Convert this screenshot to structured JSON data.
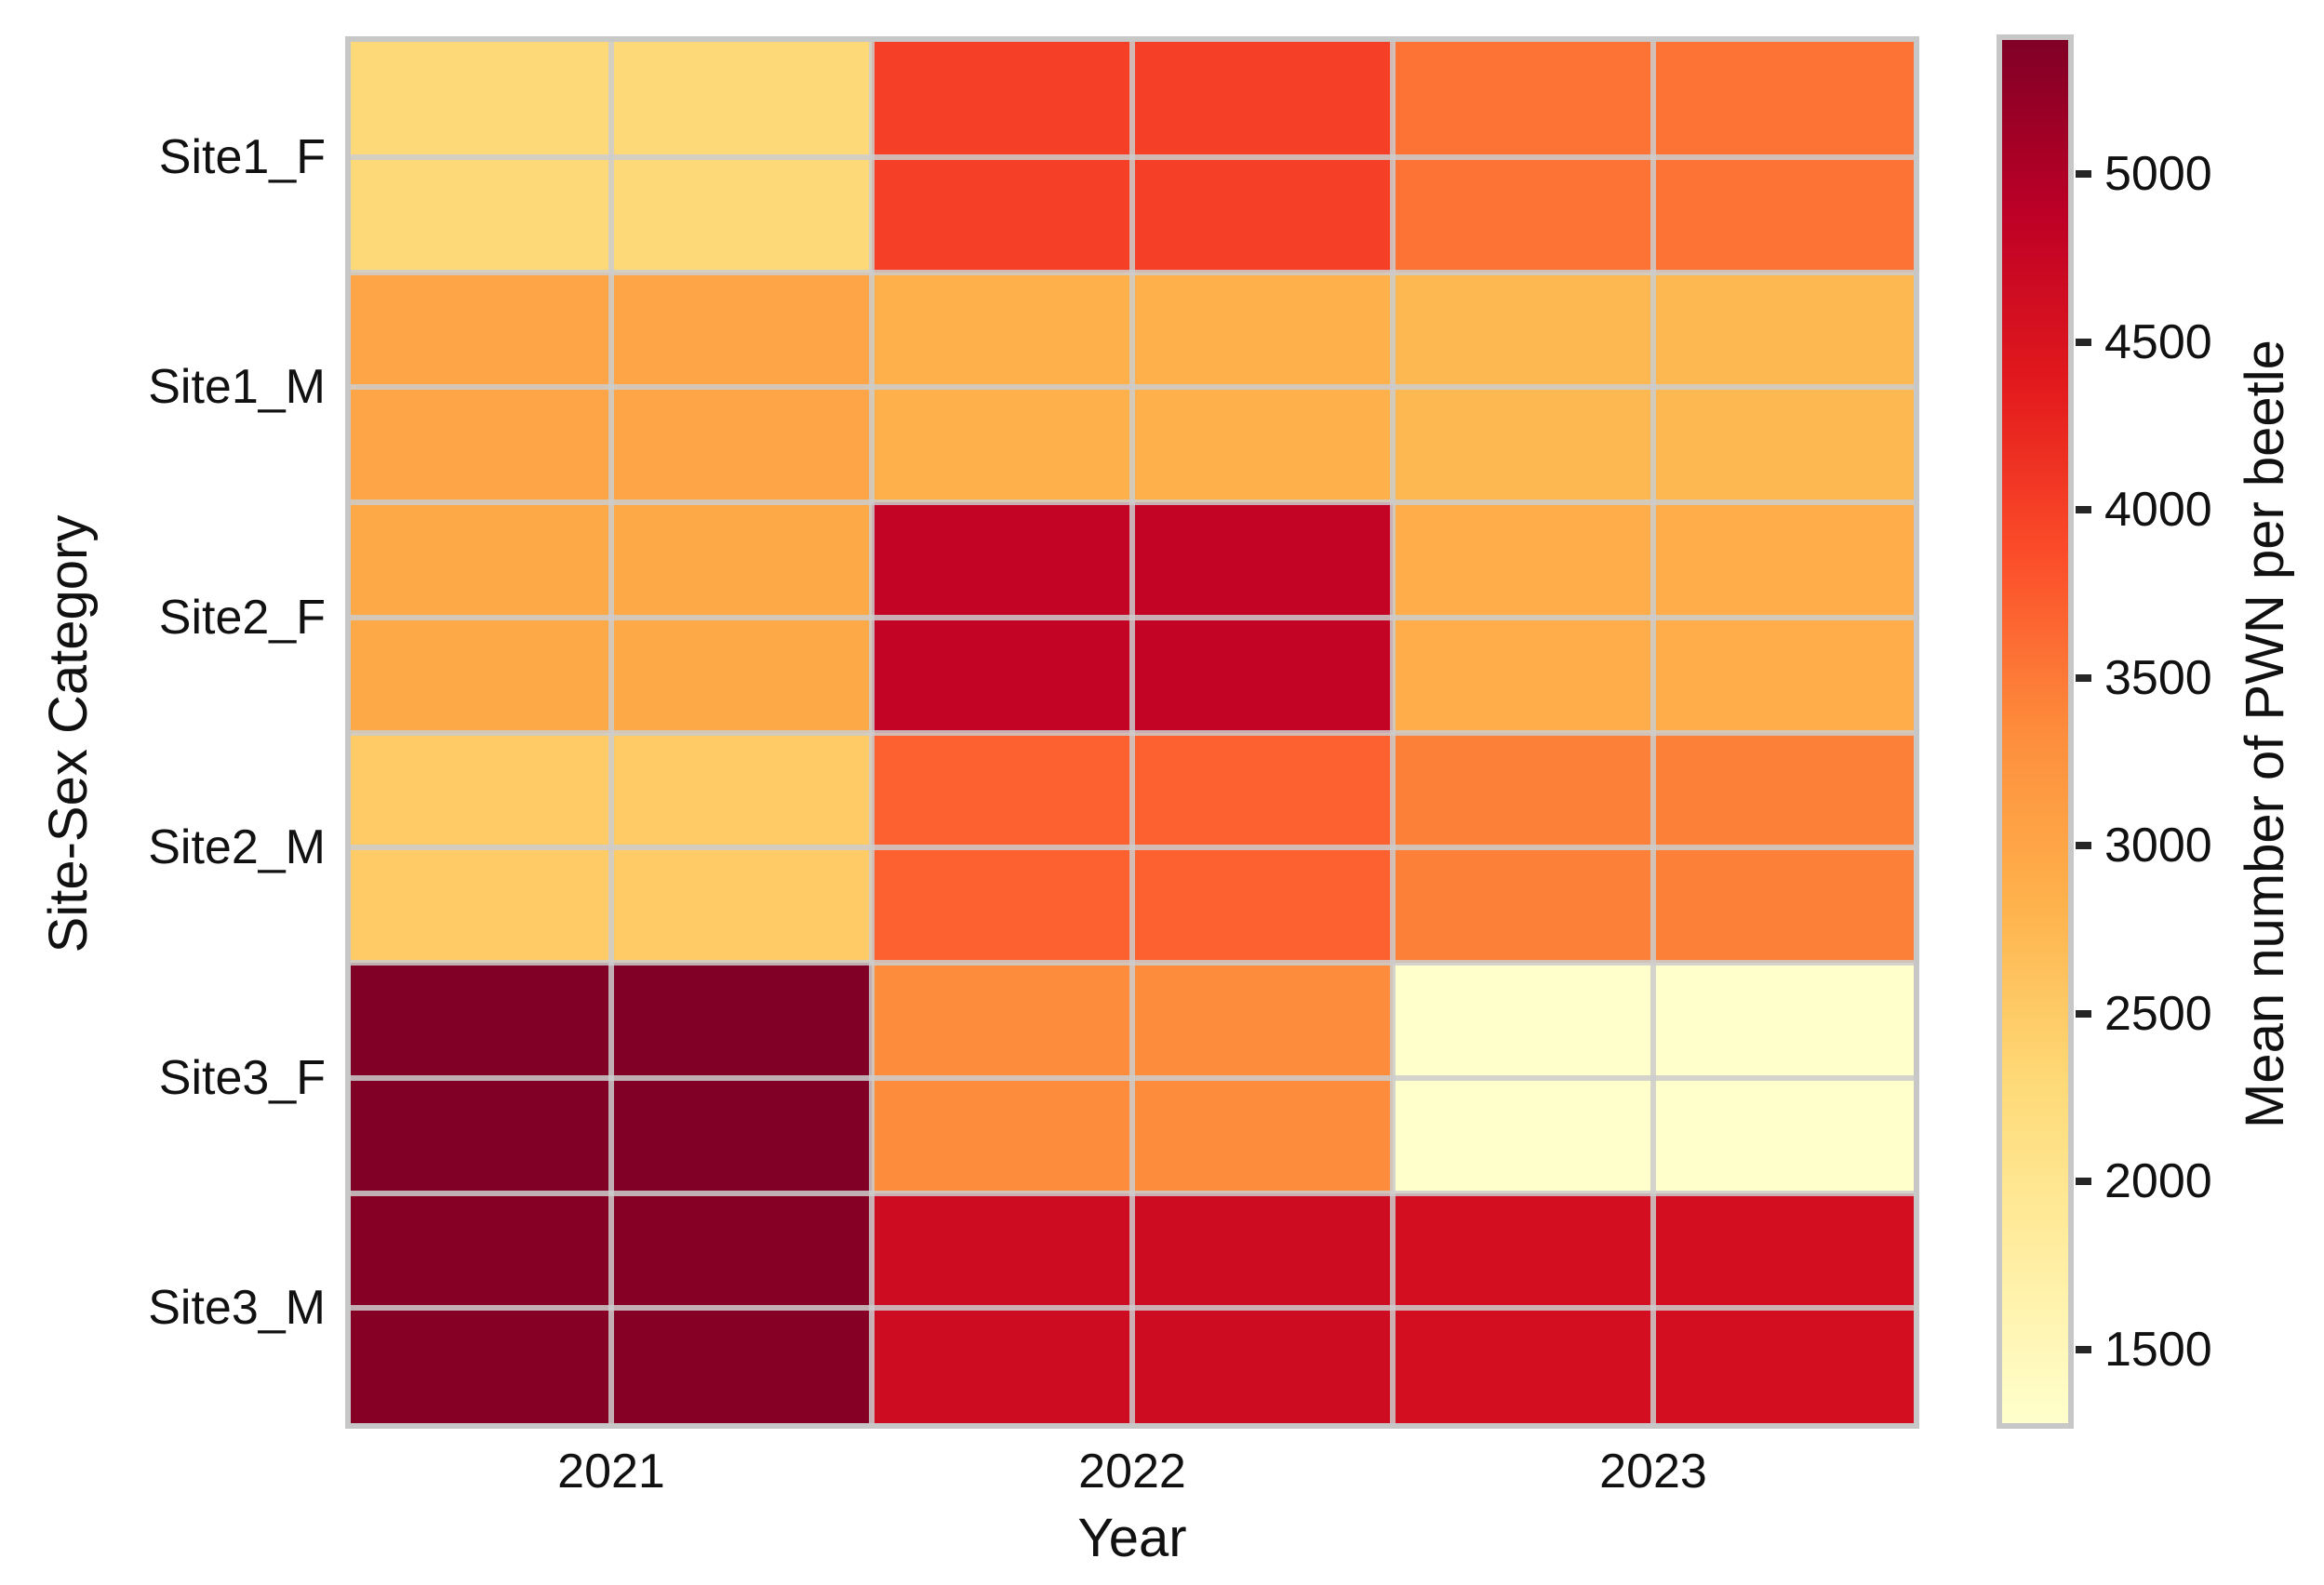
{
  "chart_data": {
    "type": "heatmap",
    "xlabel": "Year",
    "ylabel": "Site-Sex Category",
    "x": [
      "2021",
      "2022",
      "2023"
    ],
    "categories": [
      "Site1_F",
      "Site1_M",
      "Site2_F",
      "Site2_M",
      "Site3_F",
      "Site3_M"
    ],
    "series": [
      {
        "name": "Site1_F",
        "values": [
          2300,
          4000,
          3550
        ]
      },
      {
        "name": "Site1_M",
        "values": [
          3000,
          2850,
          2750
        ]
      },
      {
        "name": "Site2_F",
        "values": [
          2950,
          4800,
          2900
        ]
      },
      {
        "name": "Site2_M",
        "values": [
          2500,
          3700,
          3450
        ]
      },
      {
        "name": "Site3_F",
        "values": [
          5400,
          3350,
          1280
        ]
      },
      {
        "name": "Site3_M",
        "values": [
          5350,
          4650,
          4600
        ]
      }
    ],
    "vmin": 1280,
    "vmax": 5400,
    "colormap": {
      "name": "YlOrRd",
      "stops": [
        "#ffffcc",
        "#ffeda0",
        "#fed976",
        "#feb24c",
        "#fd8d3c",
        "#fc4e2a",
        "#e31a1c",
        "#bd0026",
        "#800026"
      ]
    },
    "colorbar": {
      "label": "Mean number of PWN per beetle",
      "ticks": [
        1500,
        2000,
        2500,
        3000,
        3500,
        4000,
        4500,
        5000
      ]
    },
    "grid": true,
    "legend_position": "none"
  },
  "colors": {
    "gridline": "rgba(204,204,204,0.85)",
    "plot_border": "#c7c7c7",
    "tick_mark": "#262626",
    "text": "#111111",
    "background": "#ffffff"
  }
}
